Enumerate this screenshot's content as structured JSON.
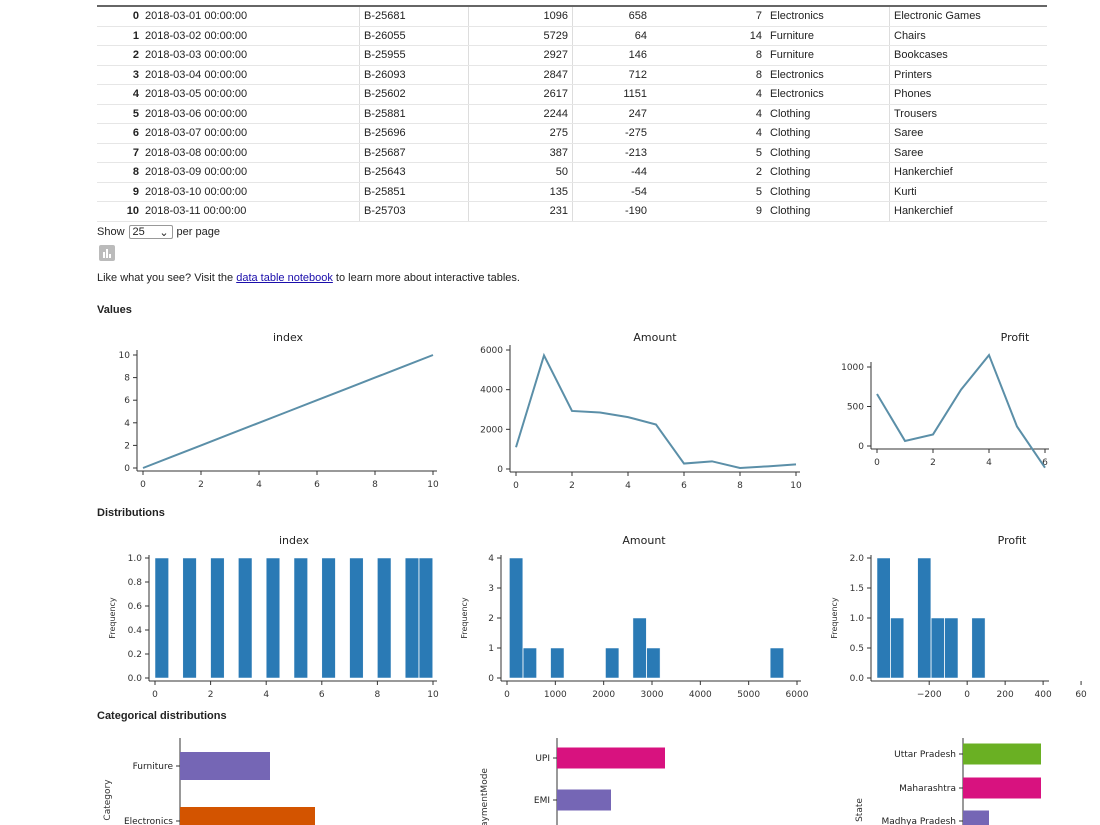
{
  "table": {
    "rows": [
      [
        "0",
        "2018-03-01 00:00:00",
        "B-25681",
        "1096",
        "658",
        "7",
        "Electronics",
        "Electronic Games"
      ],
      [
        "1",
        "2018-03-02 00:00:00",
        "B-26055",
        "5729",
        "64",
        "14",
        "Furniture",
        "Chairs"
      ],
      [
        "2",
        "2018-03-03 00:00:00",
        "B-25955",
        "2927",
        "146",
        "8",
        "Furniture",
        "Bookcases"
      ],
      [
        "3",
        "2018-03-04 00:00:00",
        "B-26093",
        "2847",
        "712",
        "8",
        "Electronics",
        "Printers"
      ],
      [
        "4",
        "2018-03-05 00:00:00",
        "B-25602",
        "2617",
        "1151",
        "4",
        "Electronics",
        "Phones"
      ],
      [
        "5",
        "2018-03-06 00:00:00",
        "B-25881",
        "2244",
        "247",
        "4",
        "Clothing",
        "Trousers"
      ],
      [
        "6",
        "2018-03-07 00:00:00",
        "B-25696",
        "275",
        "-275",
        "4",
        "Clothing",
        "Saree"
      ],
      [
        "7",
        "2018-03-08 00:00:00",
        "B-25687",
        "387",
        "-213",
        "5",
        "Clothing",
        "Saree"
      ],
      [
        "8",
        "2018-03-09 00:00:00",
        "B-25643",
        "50",
        "-44",
        "2",
        "Clothing",
        "Hankerchief"
      ],
      [
        "9",
        "2018-03-10 00:00:00",
        "B-25851",
        "135",
        "-54",
        "5",
        "Clothing",
        "Kurti"
      ],
      [
        "10",
        "2018-03-11 00:00:00",
        "B-25703",
        "231",
        "-190",
        "9",
        "Clothing",
        "Hankerchief"
      ]
    ]
  },
  "pager": {
    "show": "Show",
    "value": "25",
    "per_page": "per page"
  },
  "note": {
    "before": "Like what you see? Visit the ",
    "link": "data table notebook",
    "after": " to learn more about interactive tables."
  },
  "sections": {
    "values": "Values",
    "distributions": "Distributions",
    "categorical": "Categorical distributions"
  },
  "colors": {
    "line": "#5b8fa8",
    "hist": "#2a7ab5",
    "purple": "#7566b5",
    "orange": "#d35400",
    "magenta": "#d8127f",
    "green": "#6ab023"
  },
  "chart_data": [
    {
      "type": "line",
      "title": "index",
      "x": [
        0,
        1,
        2,
        3,
        4,
        5,
        6,
        7,
        8,
        9,
        10
      ],
      "y": [
        0,
        1,
        2,
        3,
        4,
        5,
        6,
        7,
        8,
        9,
        10
      ],
      "xticks": [
        "0",
        "2",
        "4",
        "6",
        "8",
        "10"
      ],
      "yticks": [
        "0",
        "2",
        "4",
        "6",
        "8",
        "10"
      ]
    },
    {
      "type": "line",
      "title": "Amount",
      "x": [
        0,
        1,
        2,
        3,
        4,
        5,
        6,
        7,
        8,
        9,
        10
      ],
      "y": [
        1096,
        5729,
        2927,
        2847,
        2617,
        2244,
        275,
        387,
        50,
        135,
        231
      ],
      "xticks": [
        "0",
        "2",
        "4",
        "6",
        "8",
        "10"
      ],
      "yticks": [
        "0",
        "2000",
        "4000",
        "6000"
      ]
    },
    {
      "type": "line",
      "title": "Profit",
      "x": [
        0,
        1,
        2,
        3,
        4,
        5,
        6,
        7,
        8,
        9,
        10
      ],
      "y": [
        658,
        64,
        146,
        712,
        1151,
        247,
        -275,
        -213,
        -44,
        -54,
        -190
      ],
      "xticks": [
        "0",
        "2",
        "4",
        "6"
      ],
      "yticks": [
        "0",
        "500",
        "1000"
      ]
    },
    {
      "type": "bar",
      "title": "index",
      "ylabel": "Frequency",
      "bins": 20,
      "values": [
        0,
        1,
        2,
        3,
        4,
        5,
        6,
        7,
        8,
        9,
        10
      ],
      "xticks": [
        "0",
        "2",
        "4",
        "6",
        "8",
        "10"
      ],
      "yticks": [
        "0.0",
        "0.2",
        "0.4",
        "0.6",
        "0.8",
        "1.0"
      ]
    },
    {
      "type": "bar",
      "title": "Amount",
      "ylabel": "Frequency",
      "bins": 20,
      "values": [
        1096,
        5729,
        2927,
        2847,
        2617,
        2244,
        275,
        387,
        50,
        135,
        231
      ],
      "xticks": [
        "0",
        "1000",
        "2000",
        "3000",
        "4000",
        "5000",
        "6000"
      ],
      "yticks": [
        "0",
        "1",
        "2",
        "3",
        "4"
      ]
    },
    {
      "type": "bar",
      "title": "Profit",
      "ylabel": "Frequency",
      "bins": 20,
      "values": [
        658,
        64,
        146,
        712,
        1151,
        247,
        -275,
        -213,
        -44,
        -54,
        -190
      ],
      "xticks": [
        "−200",
        "0",
        "200",
        "400",
        "60"
      ],
      "yticks": [
        "0.0",
        "0.5",
        "1.0",
        "1.5",
        "2.0"
      ]
    },
    {
      "type": "bar",
      "orientation": "horizontal",
      "ylabel": "Category",
      "categories": [
        "Furniture",
        "Electronics"
      ],
      "values": [
        2,
        3
      ]
    },
    {
      "type": "bar",
      "orientation": "horizontal",
      "ylabel": "PaymentMode",
      "categories": [
        "UPI",
        "EMI"
      ],
      "values": [
        4,
        2
      ]
    },
    {
      "type": "bar",
      "orientation": "horizontal",
      "ylabel": "State",
      "categories": [
        "Uttar Pradesh",
        "Maharashtra",
        "Madhya Pradesh"
      ],
      "values": [
        3,
        3,
        1
      ]
    }
  ]
}
